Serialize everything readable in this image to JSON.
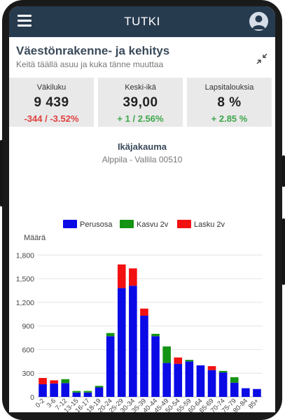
{
  "header": {
    "title": "TUTKI",
    "menu_icon": "hamburger-menu-icon",
    "avatar_icon": "user-avatar-icon"
  },
  "page": {
    "title": "Väestönrakenne- ja kehitys",
    "subtitle": "Keitä täällä asuu ja kuka tänne muuttaa",
    "collapse_icon": "collapse-arrows-icon"
  },
  "stats": [
    {
      "label": "Väkiluku",
      "value": "9 439",
      "change": "-344 / -3.52%",
      "trend": "negative"
    },
    {
      "label": "Keski-ikä",
      "value": "39,00",
      "change": "+ 1 / 2.56%",
      "trend": "positive"
    },
    {
      "label": "Lapsitalouksia",
      "value": "8 %",
      "change": "+ 2.85 %",
      "trend": "positive"
    }
  ],
  "colors": {
    "base": "#0a0ae6",
    "increase": "#149414",
    "decrease": "#f21010",
    "header": "#273b4f"
  },
  "chart_data": {
    "type": "bar",
    "stacked": true,
    "title": "Ikäjakauma",
    "subtitle": "Alppila - Vallila 00510",
    "ylabel": "Määrä",
    "ylim": [
      0,
      1900
    ],
    "yticks": [
      "0",
      "300",
      "600",
      "900",
      "1,200",
      "1,500",
      "1,800"
    ],
    "grid": true,
    "legend_position": "top",
    "categories": [
      "0-2",
      "3-6",
      "7-12",
      "13-15",
      "16-17",
      "18-19",
      "20-24",
      "25-29",
      "30-34",
      "35-39",
      "40-44",
      "45-49",
      "50-54",
      "55-59",
      "60-64",
      "65-69",
      "70-74",
      "75-79",
      "80-84",
      "85+"
    ],
    "series": [
      {
        "name": "Perusosa",
        "color": "#0a0ae6",
        "values": [
          160,
          170,
          175,
          55,
          55,
          120,
          770,
          1380,
          1410,
          1030,
          770,
          430,
          420,
          450,
          400,
          340,
          310,
          180,
          110,
          100
        ]
      },
      {
        "name": "Kasvu 2v",
        "color": "#149414",
        "values": [
          0,
          0,
          50,
          20,
          20,
          20,
          40,
          0,
          0,
          0,
          30,
          210,
          0,
          20,
          0,
          0,
          20,
          70,
          0,
          0
        ]
      },
      {
        "name": "Lasku 2v",
        "color": "#f21010",
        "values": [
          80,
          40,
          0,
          0,
          0,
          0,
          0,
          300,
          220,
          90,
          0,
          0,
          80,
          0,
          0,
          50,
          0,
          0,
          0,
          0
        ]
      }
    ]
  }
}
